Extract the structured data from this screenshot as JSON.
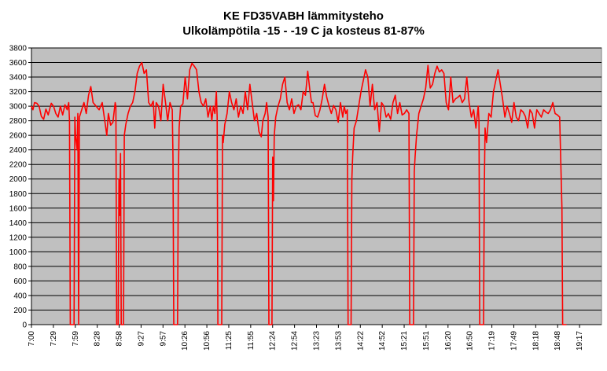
{
  "chart_data": {
    "type": "line",
    "title": "KE FD35VABH lämmitysteho",
    "subtitle": "Ulkolämpötila  -15 - -19 C ja kosteus 81-87%",
    "xlabel": "",
    "ylabel": "",
    "ylim": [
      0,
      3800
    ],
    "yticks": [
      0,
      200,
      400,
      600,
      800,
      1000,
      1200,
      1400,
      1600,
      1800,
      2000,
      2200,
      2400,
      2600,
      2800,
      3000,
      3200,
      3400,
      3600,
      3800
    ],
    "xticks": [
      "7:00",
      "7:29",
      "7:59",
      "8:28",
      "8:58",
      "9:27",
      "9:57",
      "10:26",
      "10:56",
      "11:25",
      "11:55",
      "12:24",
      "12:54",
      "13:23",
      "13:53",
      "14:22",
      "14:52",
      "15:21",
      "15:51",
      "16:20",
      "16:50",
      "17:19",
      "17:49",
      "18:18",
      "18:48",
      "19:17"
    ],
    "xrange_minutes": [
      0,
      749
    ],
    "grid": true,
    "plot_background": "#c0c0c0",
    "line_color": "#ff0000",
    "series": [
      {
        "values": [
          [
            0,
            3000
          ],
          [
            2,
            2950
          ],
          [
            4,
            3050
          ],
          [
            7,
            3040
          ],
          [
            10,
            3000
          ],
          [
            13,
            2860
          ],
          [
            16,
            2820
          ],
          [
            19,
            2960
          ],
          [
            22,
            2880
          ],
          [
            26,
            3040
          ],
          [
            29,
            3000
          ],
          [
            32,
            2900
          ],
          [
            35,
            2850
          ],
          [
            38,
            3000
          ],
          [
            41,
            2880
          ],
          [
            44,
            3020
          ],
          [
            47,
            2950
          ],
          [
            49,
            3050
          ],
          [
            50,
            2800
          ],
          [
            51,
            0
          ],
          [
            56,
            0
          ],
          [
            57,
            2850
          ],
          [
            58,
            2600
          ],
          [
            60,
            2400
          ],
          [
            61,
            2900
          ],
          [
            62,
            0
          ],
          [
            63,
            2850
          ],
          [
            66,
            2950
          ],
          [
            69,
            3050
          ],
          [
            72,
            2900
          ],
          [
            75,
            3150
          ],
          [
            78,
            3270
          ],
          [
            81,
            3050
          ],
          [
            85,
            3000
          ],
          [
            89,
            2950
          ],
          [
            93,
            3050
          ],
          [
            97,
            2750
          ],
          [
            99,
            2600
          ],
          [
            101,
            2900
          ],
          [
            104,
            2740
          ],
          [
            107,
            2780
          ],
          [
            110,
            3050
          ],
          [
            111,
            3000
          ],
          [
            112,
            0
          ],
          [
            114,
            0
          ],
          [
            115,
            2000
          ],
          [
            116,
            1500
          ],
          [
            117,
            2350
          ],
          [
            118,
            0
          ],
          [
            121,
            0
          ],
          [
            122,
            2600
          ],
          [
            124,
            2750
          ],
          [
            127,
            2900
          ],
          [
            130,
            3000
          ],
          [
            133,
            3050
          ],
          [
            136,
            3200
          ],
          [
            139,
            3450
          ],
          [
            142,
            3550
          ],
          [
            145,
            3600
          ],
          [
            148,
            3450
          ],
          [
            151,
            3500
          ],
          [
            154,
            3050
          ],
          [
            157,
            3000
          ],
          [
            160,
            3070
          ],
          [
            162,
            2700
          ],
          [
            164,
            3050
          ],
          [
            167,
            3000
          ],
          [
            170,
            2800
          ],
          [
            173,
            3300
          ],
          [
            176,
            3060
          ],
          [
            179,
            2800
          ],
          [
            182,
            3050
          ],
          [
            185,
            2950
          ],
          [
            186,
            2300
          ],
          [
            187,
            0
          ],
          [
            192,
            0
          ],
          [
            193,
            2000
          ],
          [
            194,
            2700
          ],
          [
            196,
            3000
          ],
          [
            199,
            3030
          ],
          [
            202,
            3400
          ],
          [
            205,
            3100
          ],
          [
            208,
            3500
          ],
          [
            211,
            3590
          ],
          [
            214,
            3550
          ],
          [
            217,
            3500
          ],
          [
            220,
            3200
          ],
          [
            223,
            3050
          ],
          [
            226,
            3000
          ],
          [
            229,
            3100
          ],
          [
            232,
            2850
          ],
          [
            235,
            3000
          ],
          [
            237,
            2800
          ],
          [
            239,
            3000
          ],
          [
            241,
            2900
          ],
          [
            243,
            3200
          ],
          [
            244,
            2850
          ],
          [
            245,
            0
          ],
          [
            250,
            0
          ],
          [
            251,
            2600
          ],
          [
            252,
            2500
          ],
          [
            254,
            2750
          ],
          [
            257,
            2900
          ],
          [
            260,
            3200
          ],
          [
            263,
            3050
          ],
          [
            266,
            2950
          ],
          [
            269,
            3100
          ],
          [
            272,
            2850
          ],
          [
            275,
            3000
          ],
          [
            278,
            2900
          ],
          [
            281,
            3200
          ],
          [
            284,
            2950
          ],
          [
            287,
            3300
          ],
          [
            290,
            3050
          ],
          [
            293,
            2800
          ],
          [
            296,
            2900
          ],
          [
            299,
            2650
          ],
          [
            302,
            2580
          ],
          [
            304,
            2800
          ],
          [
            307,
            2900
          ],
          [
            309,
            3050
          ],
          [
            311,
            2850
          ],
          [
            312,
            0
          ],
          [
            316,
            0
          ],
          [
            317,
            2300
          ],
          [
            318,
            1700
          ],
          [
            319,
            2600
          ],
          [
            321,
            2850
          ],
          [
            324,
            3000
          ],
          [
            327,
            3100
          ],
          [
            330,
            3300
          ],
          [
            333,
            3400
          ],
          [
            336,
            3050
          ],
          [
            339,
            2950
          ],
          [
            342,
            3100
          ],
          [
            345,
            2900
          ],
          [
            348,
            3000
          ],
          [
            351,
            3020
          ],
          [
            354,
            2950
          ],
          [
            357,
            3200
          ],
          [
            360,
            3150
          ],
          [
            363,
            3480
          ],
          [
            366,
            3200
          ],
          [
            368,
            3050
          ],
          [
            370,
            3050
          ],
          [
            373,
            2870
          ],
          [
            376,
            2850
          ],
          [
            379,
            2950
          ],
          [
            382,
            3100
          ],
          [
            385,
            3300
          ],
          [
            388,
            3120
          ],
          [
            391,
            3000
          ],
          [
            394,
            2900
          ],
          [
            397,
            3010
          ],
          [
            400,
            2950
          ],
          [
            403,
            2780
          ],
          [
            406,
            3050
          ],
          [
            409,
            2850
          ],
          [
            411,
            3000
          ],
          [
            413,
            2900
          ],
          [
            415,
            2950
          ],
          [
            416,
            0
          ],
          [
            420,
            0
          ],
          [
            421,
            2000
          ],
          [
            422,
            2300
          ],
          [
            424,
            2700
          ],
          [
            427,
            2800
          ],
          [
            430,
            3000
          ],
          [
            433,
            3200
          ],
          [
            436,
            3350
          ],
          [
            439,
            3500
          ],
          [
            442,
            3400
          ],
          [
            445,
            3000
          ],
          [
            448,
            3300
          ],
          [
            451,
            2950
          ],
          [
            454,
            3050
          ],
          [
            457,
            2650
          ],
          [
            460,
            3050
          ],
          [
            463,
            3000
          ],
          [
            466,
            2850
          ],
          [
            469,
            2900
          ],
          [
            472,
            2820
          ],
          [
            475,
            3050
          ],
          [
            478,
            3150
          ],
          [
            481,
            2900
          ],
          [
            484,
            3050
          ],
          [
            487,
            2880
          ],
          [
            490,
            2900
          ],
          [
            493,
            2950
          ],
          [
            496,
            2900
          ],
          [
            497,
            0
          ],
          [
            502,
            0
          ],
          [
            503,
            2100
          ],
          [
            504,
            2300
          ],
          [
            506,
            2600
          ],
          [
            509,
            2900
          ],
          [
            512,
            3000
          ],
          [
            515,
            3100
          ],
          [
            518,
            3250
          ],
          [
            521,
            3560
          ],
          [
            524,
            3250
          ],
          [
            527,
            3300
          ],
          [
            530,
            3450
          ],
          [
            533,
            3550
          ],
          [
            536,
            3470
          ],
          [
            539,
            3500
          ],
          [
            542,
            3450
          ],
          [
            545,
            3050
          ],
          [
            548,
            2950
          ],
          [
            551,
            3400
          ],
          [
            554,
            3050
          ],
          [
            557,
            3100
          ],
          [
            560,
            3120
          ],
          [
            563,
            3150
          ],
          [
            566,
            3050
          ],
          [
            569,
            3100
          ],
          [
            572,
            3400
          ],
          [
            575,
            3050
          ],
          [
            578,
            2850
          ],
          [
            581,
            2950
          ],
          [
            584,
            2700
          ],
          [
            587,
            3000
          ],
          [
            588,
            2800
          ],
          [
            589,
            0
          ],
          [
            594,
            0
          ],
          [
            595,
            1800
          ],
          [
            596,
            2700
          ],
          [
            598,
            2500
          ],
          [
            601,
            2900
          ],
          [
            604,
            2850
          ],
          [
            607,
            3200
          ],
          [
            610,
            3350
          ],
          [
            613,
            3500
          ],
          [
            616,
            3300
          ],
          [
            619,
            3100
          ],
          [
            622,
            2850
          ],
          [
            625,
            3000
          ],
          [
            628,
            2900
          ],
          [
            631,
            2780
          ],
          [
            634,
            3050
          ],
          [
            637,
            2850
          ],
          [
            640,
            2800
          ],
          [
            643,
            2950
          ],
          [
            646,
            2920
          ],
          [
            649,
            2860
          ],
          [
            652,
            2700
          ],
          [
            655,
            2950
          ],
          [
            658,
            2900
          ],
          [
            661,
            2700
          ],
          [
            664,
            2950
          ],
          [
            667,
            2900
          ],
          [
            670,
            2850
          ],
          [
            673,
            2950
          ],
          [
            676,
            2920
          ],
          [
            679,
            2900
          ],
          [
            682,
            2950
          ],
          [
            685,
            3050
          ],
          [
            688,
            2900
          ],
          [
            691,
            2880
          ],
          [
            694,
            2850
          ],
          [
            697,
            1600
          ],
          [
            698,
            0
          ],
          [
            703,
            0
          ]
        ]
      }
    ]
  }
}
